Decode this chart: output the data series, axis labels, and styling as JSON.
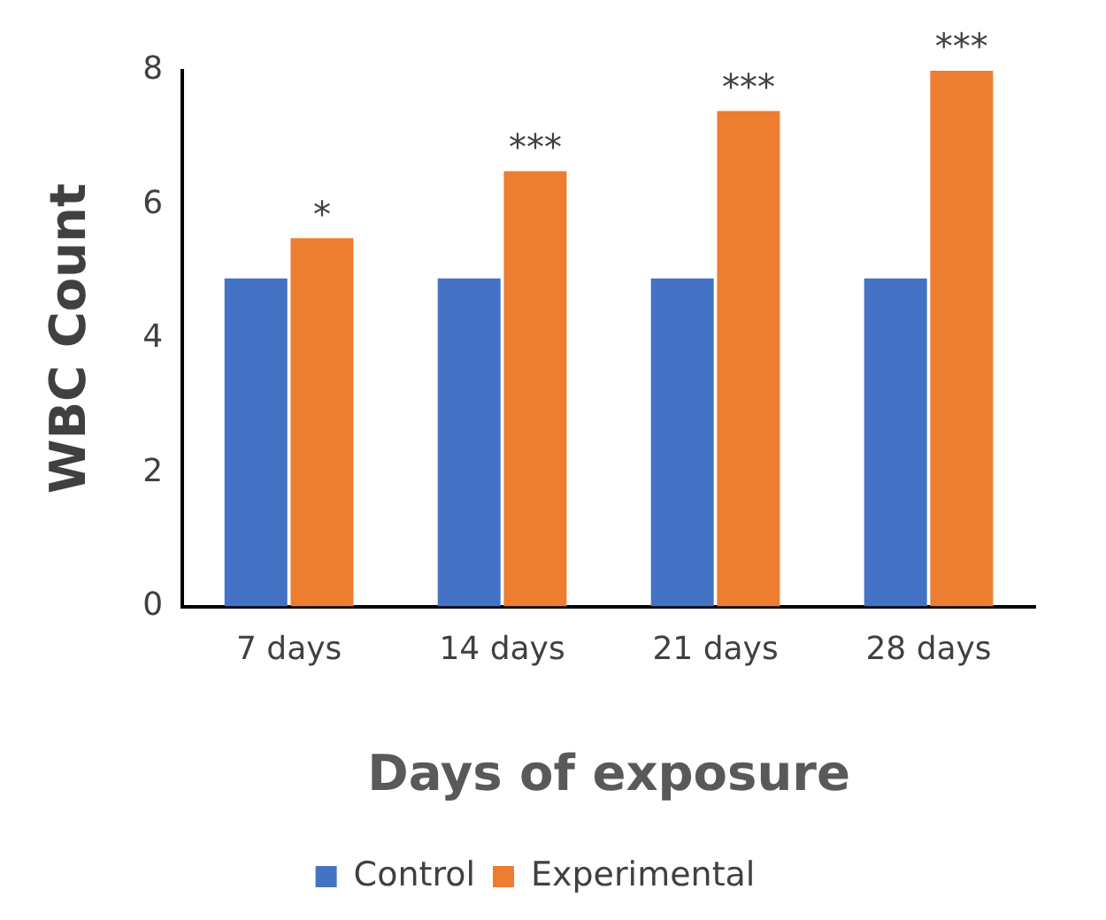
{
  "chart_data": {
    "type": "bar",
    "xlabel": "Days of exposure",
    "ylabel": "WBC Count",
    "categories": [
      "7 days",
      "14 days",
      "21 days",
      "28 days"
    ],
    "series": [
      {
        "name": "Control",
        "color": "#4472c4",
        "values": [
          4.9,
          4.9,
          4.9,
          4.9
        ]
      },
      {
        "name": "Experimental",
        "color": "#ed7d31",
        "values": [
          5.5,
          6.5,
          7.4,
          8.0
        ]
      }
    ],
    "ylim": [
      0,
      8
    ],
    "yticks": [
      0,
      2,
      4,
      6,
      8
    ],
    "grid": false,
    "legend": "bottom",
    "annotations": [
      {
        "text": "*",
        "x": "7 days",
        "y": 5.5
      },
      {
        "text": "***",
        "x": "14 days",
        "y": 6.5
      },
      {
        "text": "***",
        "x": "21 days",
        "y": 7.4
      },
      {
        "text": "***",
        "x": "28 days",
        "y": 8.0
      }
    ]
  }
}
